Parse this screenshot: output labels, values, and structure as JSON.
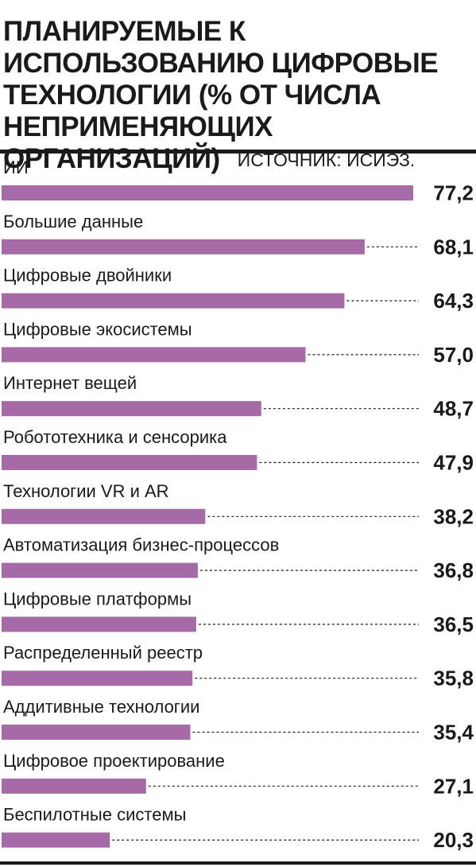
{
  "header": {
    "title": "ПЛАНИРУЕМЫЕ К ИСПОЛЬЗОВАНИЮ ЦИФРОВЫЕ ТЕХНОЛОГИИ (% ОТ ЧИСЛА НЕПРИМЕНЯЮЩИХ ОРГАНИЗАЦИЙ)",
    "source": "ИСТОЧНИК: ИСИЭЗ."
  },
  "colors": {
    "bar": "#a66aa6",
    "text": "#1a1a1a",
    "leader": "#1a1a1a"
  },
  "chart_data": {
    "type": "bar",
    "orientation": "horizontal",
    "title": "ПЛАНИРУЕМЫЕ К ИСПОЛЬЗОВАНИЮ ЦИФРОВЫЕ ТЕХНОЛОГИИ (% ОТ ЧИСЛА НЕПРИМЕНЯЮЩИХ ОРГАНИЗАЦИЙ)",
    "source": "ИСТОЧНИК: ИСИЭЗ.",
    "categories": [
      "ИИ",
      "Большие данные",
      "Цифровые двойники",
      "Цифровые экосистемы",
      "Интернет вещей",
      "Робототехника и сенсорика",
      "Технологии VR и AR",
      "Автоматизация бизнес-процессов",
      "Цифровые платформы",
      "Распределенный реестр",
      "Аддитивные технологии",
      "Цифровое проектирование",
      "Беспилотные системы"
    ],
    "values": [
      77.2,
      68.1,
      64.3,
      57.0,
      48.7,
      47.9,
      38.2,
      36.8,
      36.5,
      35.8,
      35.4,
      27.1,
      20.3
    ],
    "value_labels": [
      "77,2",
      "68,1",
      "64,3",
      "57,0",
      "48,7",
      "47,9",
      "38,2",
      "36,8",
      "36,5",
      "35,8",
      "35,4",
      "27,1",
      "20,3"
    ],
    "xlim": [
      0,
      77.2
    ],
    "grid": false,
    "legend": "none"
  }
}
